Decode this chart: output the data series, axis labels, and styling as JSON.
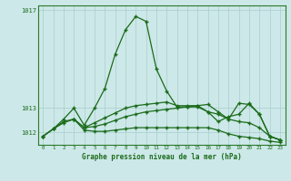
{
  "title": "Graphe pression niveau de la mer (hPa)",
  "background_color": "#cde8e8",
  "line_color": "#1a6b1a",
  "grid_color": "#a8cece",
  "xlim": [
    -0.5,
    23.5
  ],
  "ylim": [
    1011.5,
    1017.2
  ],
  "yticks": [
    1012,
    1013,
    1017
  ],
  "xticks": [
    0,
    1,
    2,
    3,
    4,
    5,
    6,
    7,
    8,
    9,
    10,
    11,
    12,
    13,
    14,
    15,
    16,
    17,
    18,
    19,
    20,
    21,
    22,
    23
  ],
  "series": [
    {
      "x": [
        0,
        1,
        2,
        3,
        4,
        5,
        6,
        7,
        8,
        9,
        10,
        11,
        12,
        13,
        14,
        15,
        16,
        17,
        18,
        19,
        20,
        21,
        22,
        23
      ],
      "y": [
        1011.85,
        1012.15,
        1012.55,
        1013.0,
        1012.3,
        1013.0,
        1013.8,
        1015.2,
        1016.2,
        1016.75,
        1016.55,
        1014.6,
        1013.7,
        1013.05,
        1013.05,
        1013.05,
        1012.85,
        1012.75,
        1012.55,
        1013.2,
        1013.15,
        1012.75,
        1011.85,
        1011.7
      ]
    },
    {
      "x": [
        3,
        4,
        5,
        6,
        7,
        8,
        9,
        10,
        11,
        12,
        13,
        14,
        15,
        16,
        17,
        18,
        19,
        20,
        21,
        22,
        23
      ],
      "y": [
        1012.55,
        1012.2,
        1012.4,
        1012.6,
        1012.8,
        1013.0,
        1013.1,
        1013.15,
        1013.2,
        1013.25,
        1013.1,
        1013.1,
        1013.1,
        1012.85,
        1012.45,
        1012.65,
        1012.75,
        1013.2,
        1012.75,
        1011.85,
        1011.7
      ]
    },
    {
      "x": [
        0,
        1,
        2,
        3,
        4,
        5,
        6,
        7,
        8,
        9,
        10,
        11,
        12,
        13,
        14,
        15,
        16,
        17,
        18,
        19,
        20,
        21,
        22,
        23
      ],
      "y": [
        1011.85,
        1012.15,
        1012.45,
        1012.55,
        1012.2,
        1012.25,
        1012.35,
        1012.5,
        1012.65,
        1012.75,
        1012.85,
        1012.9,
        1012.95,
        1013.0,
        1013.05,
        1013.1,
        1013.15,
        1012.85,
        1012.55,
        1012.45,
        1012.4,
        1012.2,
        1011.85,
        1011.7
      ]
    },
    {
      "x": [
        0,
        1,
        2,
        3,
        4,
        5,
        6,
        7,
        8,
        9,
        10,
        11,
        12,
        13,
        14,
        15,
        16,
        17,
        18,
        19,
        20,
        21,
        22,
        23
      ],
      "y": [
        1011.85,
        1012.15,
        1012.4,
        1012.55,
        1012.1,
        1012.05,
        1012.05,
        1012.1,
        1012.15,
        1012.2,
        1012.2,
        1012.2,
        1012.2,
        1012.2,
        1012.2,
        1012.2,
        1012.2,
        1012.1,
        1011.95,
        1011.85,
        1011.8,
        1011.75,
        1011.65,
        1011.6
      ]
    }
  ]
}
